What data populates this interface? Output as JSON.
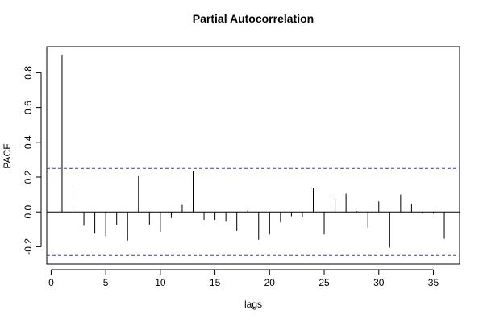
{
  "chart_data": {
    "type": "bar",
    "title": "Partial Autocorrelation",
    "xlabel": "lags",
    "ylabel": "PACF",
    "xlim": [
      -0.4,
      37.4
    ],
    "ylim": [
      -0.3,
      0.95
    ],
    "x_ticks": [
      0,
      5,
      10,
      15,
      20,
      25,
      30,
      35
    ],
    "y_ticks": [
      -0.2,
      0.0,
      0.2,
      0.4,
      0.6,
      0.8
    ],
    "y_tick_labels": [
      "-0.2",
      "0.0",
      "0.2",
      "0.4",
      "0.6",
      "0.8"
    ],
    "confidence_bounds": [
      0.25,
      -0.25
    ],
    "colors": {
      "bars": "#000000",
      "confidence": "#3333ff",
      "axes": "#000000"
    },
    "lags": [
      1,
      2,
      3,
      4,
      5,
      6,
      7,
      8,
      9,
      10,
      11,
      12,
      13,
      14,
      15,
      16,
      17,
      18,
      19,
      20,
      21,
      22,
      23,
      24,
      25,
      26,
      27,
      28,
      29,
      30,
      31,
      32,
      33,
      34,
      35,
      36
    ],
    "values": [
      0.905,
      0.145,
      -0.08,
      -0.125,
      -0.14,
      -0.075,
      -0.165,
      0.205,
      -0.075,
      -0.115,
      -0.035,
      0.04,
      0.235,
      -0.045,
      -0.045,
      -0.055,
      -0.11,
      0.01,
      -0.16,
      -0.13,
      -0.06,
      -0.025,
      -0.03,
      0.135,
      -0.13,
      0.075,
      0.105,
      0.005,
      -0.09,
      0.06,
      -0.205,
      0.1,
      0.045,
      -0.01,
      -0.01,
      -0.155
    ]
  }
}
